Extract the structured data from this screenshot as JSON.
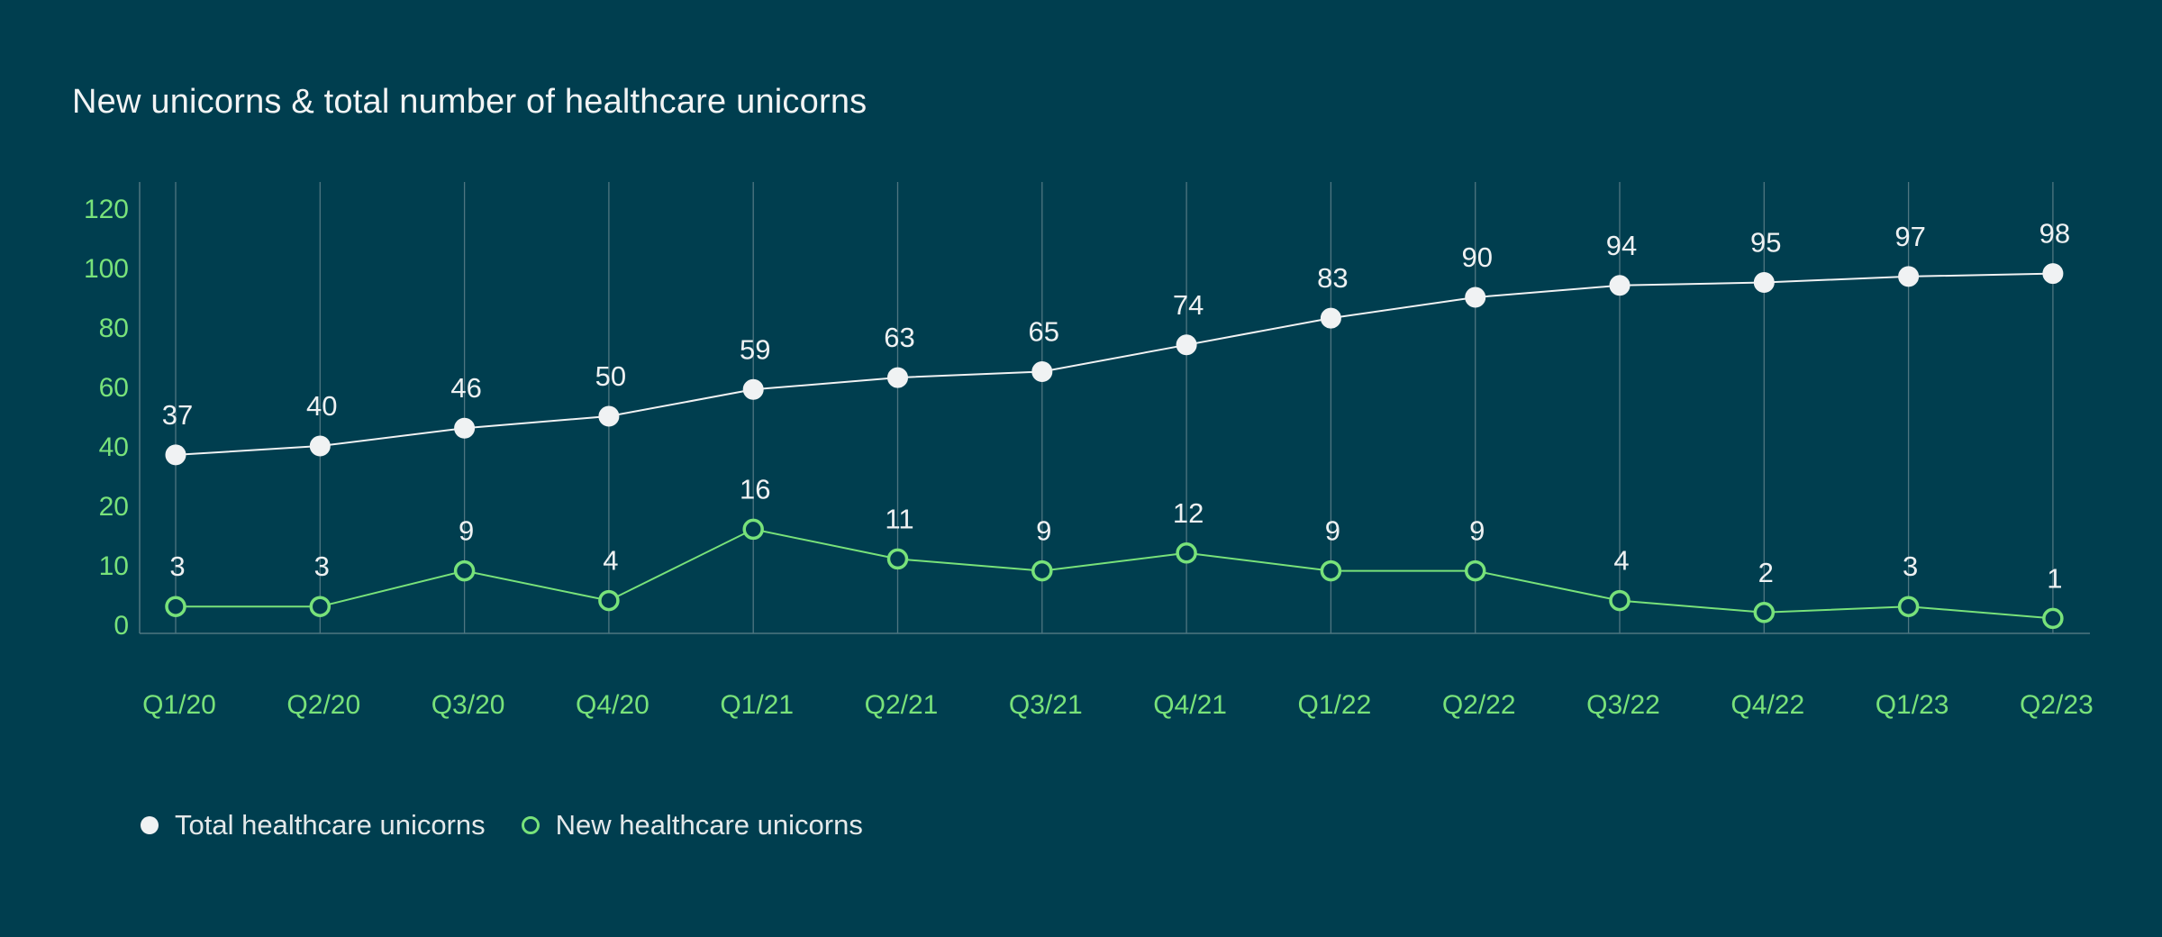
{
  "colors": {
    "background": "#003e4f",
    "total_series": "#f0f2f3",
    "new_series": "#78e27a",
    "axis_labels": "#78e27a",
    "grid": "#4f7681"
  },
  "legend": {
    "items": [
      {
        "label": "Total healthcare unicorns",
        "marker": "filled-circle"
      },
      {
        "label": "New healthcare unicorns",
        "marker": "hollow-circle"
      }
    ],
    "position": "bottom-left"
  },
  "chart_data": {
    "type": "line",
    "title": "New unicorns & total number of healthcare unicorns",
    "categories": [
      "Q1/20",
      "Q2/20",
      "Q3/20",
      "Q4/20",
      "Q1/21",
      "Q2/21",
      "Q3/21",
      "Q4/21",
      "Q1/22",
      "Q2/22",
      "Q3/22",
      "Q4/22",
      "Q1/23",
      "Q2/23"
    ],
    "y_ticks": [
      "0",
      "10",
      "20",
      "40",
      "60",
      "80",
      "100",
      "120"
    ],
    "y_scale": "non-linear: 0–20 in steps of 10, then 20–120 in steps of 20 (equal spacing per tick)",
    "grid": "vertical lines at each category",
    "series": [
      {
        "name": "Total healthcare unicorns",
        "values": [
          37,
          40,
          46,
          50,
          59,
          63,
          65,
          74,
          83,
          90,
          94,
          95,
          97,
          98
        ]
      },
      {
        "name": "New healthcare unicorns",
        "values": [
          3,
          3,
          9,
          4,
          16,
          11,
          9,
          12,
          9,
          9,
          4,
          2,
          3,
          1
        ]
      }
    ]
  }
}
